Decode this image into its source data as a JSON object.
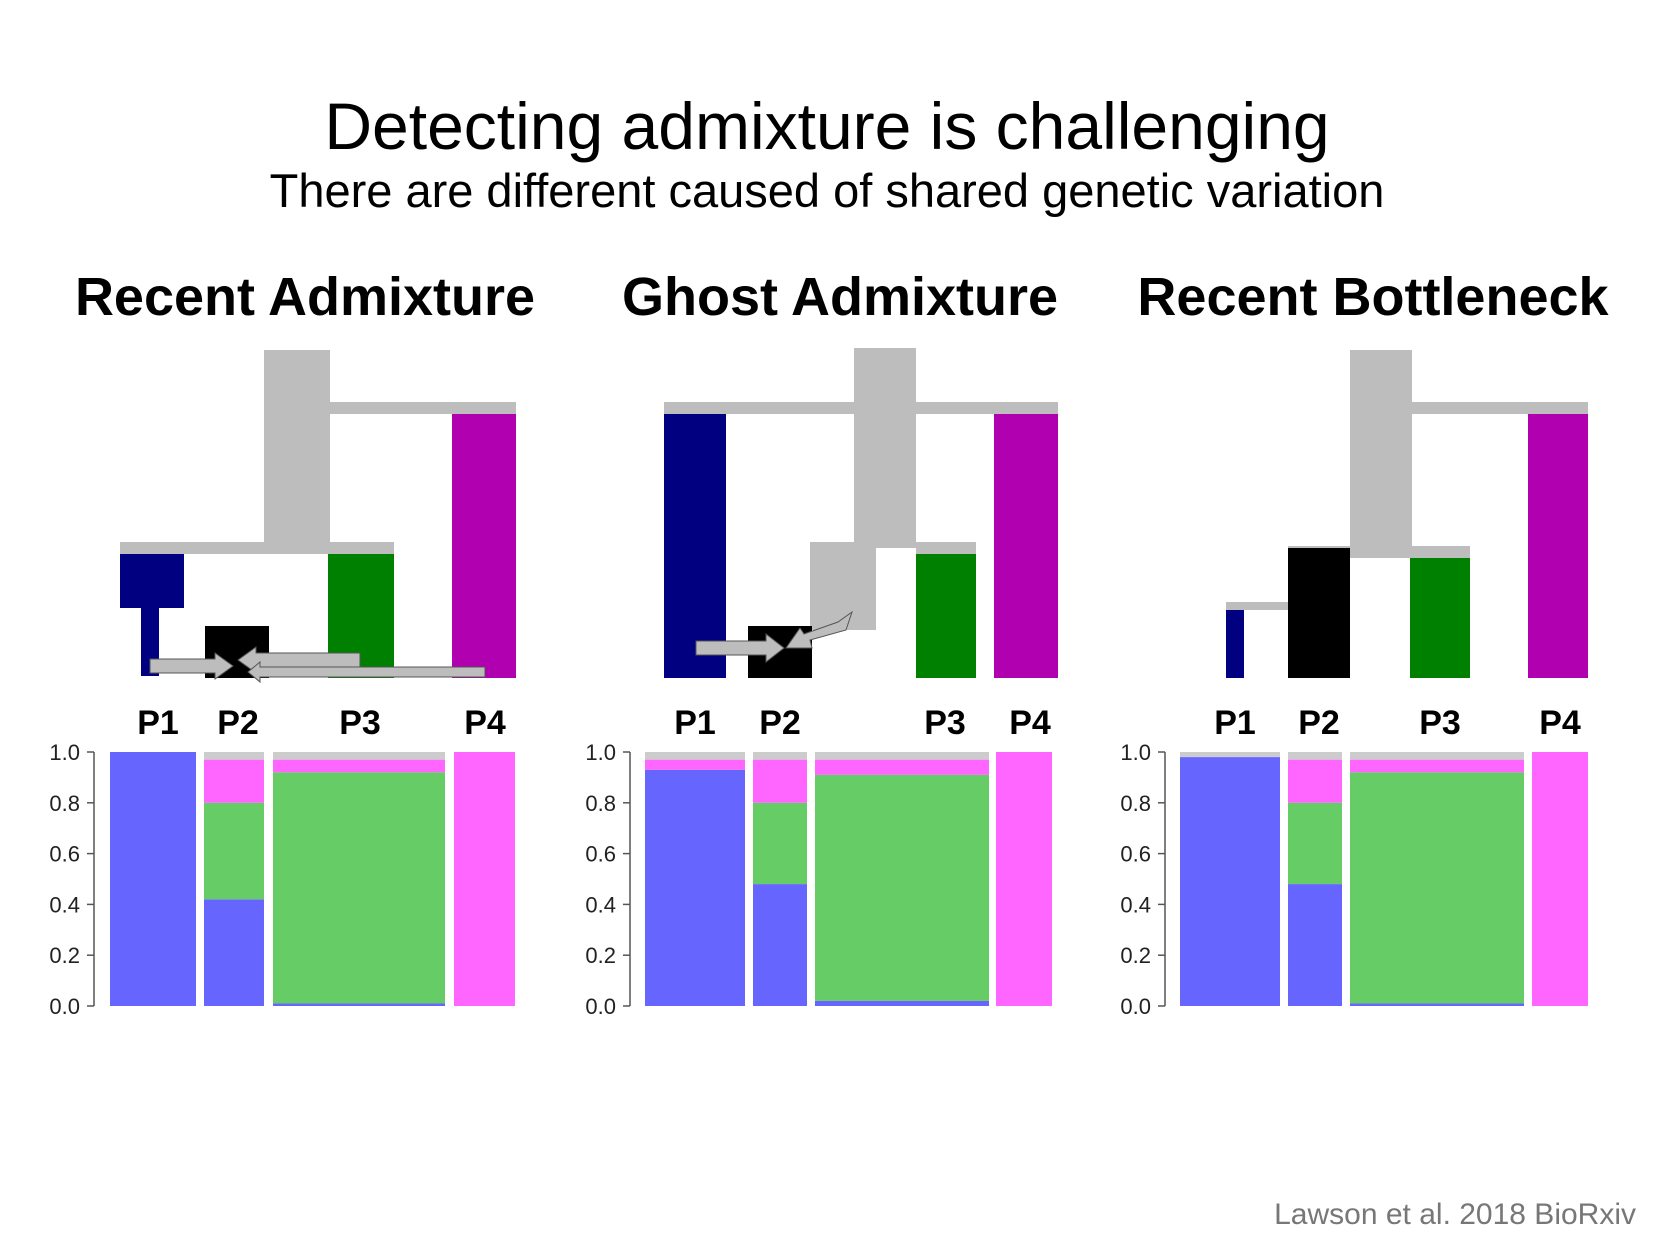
{
  "slide": {
    "title": "Detecting admixture is challenging",
    "subtitle": "There are different caused of shared genetic variation",
    "citation": "Lawson et al. 2018 BioRxiv"
  },
  "colors": {
    "pop1": "#000080",
    "pop2": "#000000",
    "pop3": "#008000",
    "pop4": "#b000b0",
    "ancestral": "#bdbdbd",
    "k_blue": "#6666ff",
    "k_green": "#66cc66",
    "k_pink": "#ff66ff",
    "k_grey": "#cccccc"
  },
  "chart_data": [
    {
      "type": "bar",
      "title": "Recent Admixture",
      "stacked": true,
      "categories": [
        "P1",
        "P2",
        "P3",
        "P4"
      ],
      "ylim": [
        0,
        1
      ],
      "yticks": [
        "1.0",
        "0.8",
        "0.6",
        "0.4",
        "0.2",
        "0.0"
      ],
      "series": [
        {
          "color": "#6666ff",
          "values": [
            1.0,
            0.42,
            0.01,
            0.0
          ]
        },
        {
          "color": "#66cc66",
          "values": [
            0.0,
            0.38,
            0.91,
            0.0
          ]
        },
        {
          "color": "#ff66ff",
          "values": [
            0.0,
            0.17,
            0.05,
            1.0
          ]
        },
        {
          "color": "#cccccc",
          "values": [
            0.0,
            0.03,
            0.03,
            0.0
          ]
        }
      ],
      "tree": "P2 receives admixture from P1 and P3/P4"
    },
    {
      "type": "bar",
      "title": "Ghost Admixture",
      "stacked": true,
      "categories": [
        "P1",
        "P2",
        "P3",
        "P4"
      ],
      "ylim": [
        0,
        1
      ],
      "yticks": [
        "1.0",
        "0.8",
        "0.6",
        "0.4",
        "0.2",
        "0.0"
      ],
      "series": [
        {
          "color": "#6666ff",
          "values": [
            0.93,
            0.48,
            0.02,
            0.0
          ]
        },
        {
          "color": "#66cc66",
          "values": [
            0.0,
            0.32,
            0.89,
            0.0
          ]
        },
        {
          "color": "#ff66ff",
          "values": [
            0.04,
            0.17,
            0.06,
            1.0
          ]
        },
        {
          "color": "#cccccc",
          "values": [
            0.03,
            0.03,
            0.03,
            0.0
          ]
        }
      ],
      "tree": "P2 receives admixture from P1 and an unsampled ghost population"
    },
    {
      "type": "bar",
      "title": "Recent Bottleneck",
      "stacked": true,
      "categories": [
        "P1",
        "P2",
        "P3",
        "P4"
      ],
      "ylim": [
        0,
        1
      ],
      "yticks": [
        "1.0",
        "0.8",
        "0.6",
        "0.4",
        "0.2",
        "0.0"
      ],
      "series": [
        {
          "color": "#6666ff",
          "values": [
            0.98,
            0.48,
            0.01,
            0.0
          ]
        },
        {
          "color": "#66cc66",
          "values": [
            0.0,
            0.32,
            0.91,
            0.0
          ]
        },
        {
          "color": "#ff66ff",
          "values": [
            0.0,
            0.17,
            0.05,
            1.0
          ]
        },
        {
          "color": "#cccccc",
          "values": [
            0.02,
            0.03,
            0.03,
            0.0
          ]
        }
      ],
      "tree": "P1 goes through a recent bottleneck"
    }
  ]
}
